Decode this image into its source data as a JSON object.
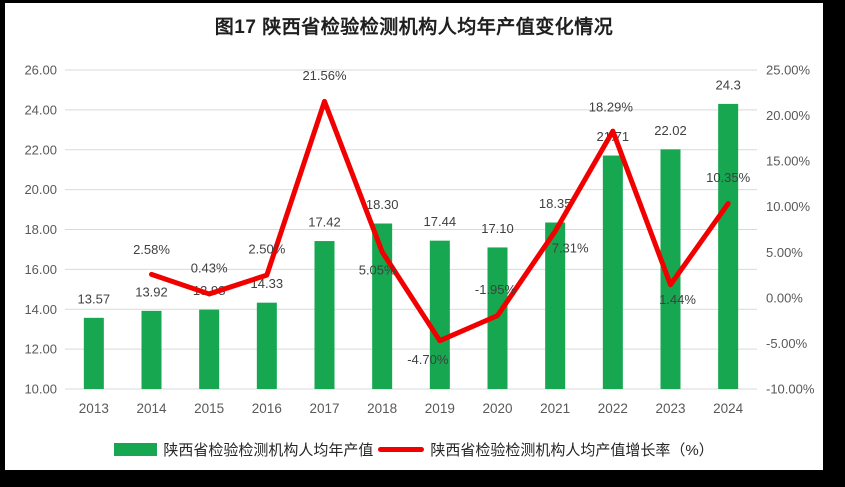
{
  "title": "图17 陕西省检验检测机构人均年产值变化情况",
  "legend": {
    "items": [
      {
        "label": "陕西省检验检测机构人均年产值",
        "swatch": "bar"
      },
      {
        "label": "陕西省检验检测机构人均产值增长率（%）",
        "swatch": "line"
      }
    ]
  },
  "chart_data": {
    "type": "bar",
    "combo": "bar+line",
    "title": "图17 陕西省检验检测机构人均年产值变化情况",
    "categories": [
      "2013",
      "2014",
      "2015",
      "2016",
      "2017",
      "2018",
      "2019",
      "2020",
      "2021",
      "2022",
      "2023",
      "2024"
    ],
    "series": [
      {
        "name": "陕西省检验检测机构人均年产值",
        "type": "bar",
        "axis": "left",
        "values": [
          13.57,
          13.92,
          13.98,
          14.33,
          17.42,
          18.3,
          17.44,
          17.1,
          18.35,
          21.71,
          22.02,
          24.3
        ],
        "labels": [
          "13.57",
          "13.92",
          "13.98",
          "14.33",
          "17.42",
          "18.30",
          "17.44",
          "17.10",
          "18.35",
          "21.71",
          "22.02",
          "24.3"
        ]
      },
      {
        "name": "陕西省检验检测机构人均产值增长率（%）",
        "type": "line",
        "axis": "right",
        "values": [
          null,
          2.58,
          0.43,
          2.5,
          21.56,
          5.05,
          -4.7,
          -1.95,
          7.31,
          18.29,
          1.44,
          10.35
        ],
        "labels": [
          "",
          "2.58%",
          "0.43%",
          "2.50%",
          "21.56%",
          "5.05%",
          "-4.70%",
          "-1.95%",
          "7.31%",
          "18.29%",
          "1.44%",
          "10.35%"
        ]
      }
    ],
    "left_axis": {
      "min": 10,
      "max": 26,
      "step": 2,
      "ticks": [
        "26.00",
        "24.00",
        "22.00",
        "20.00",
        "18.00",
        "16.00",
        "14.00",
        "12.00",
        "10.00"
      ]
    },
    "right_axis": {
      "min": -10,
      "max": 25,
      "step": 5,
      "ticks": [
        "25.00%",
        "20.00%",
        "15.00%",
        "10.00%",
        "5.00%",
        "0.00%",
        "-5.00%",
        "-10.00%"
      ]
    },
    "grid": true,
    "legend_position": "bottom",
    "colors": {
      "bar": "#16A750",
      "line": "#F20000",
      "grid": "#D9D9D9",
      "axis_text": "#595959",
      "data_label": "#404040",
      "title_text": "#1F1F1F",
      "legend_text": "#262626",
      "background": "#FFFFFF",
      "frame": "#000000"
    }
  }
}
